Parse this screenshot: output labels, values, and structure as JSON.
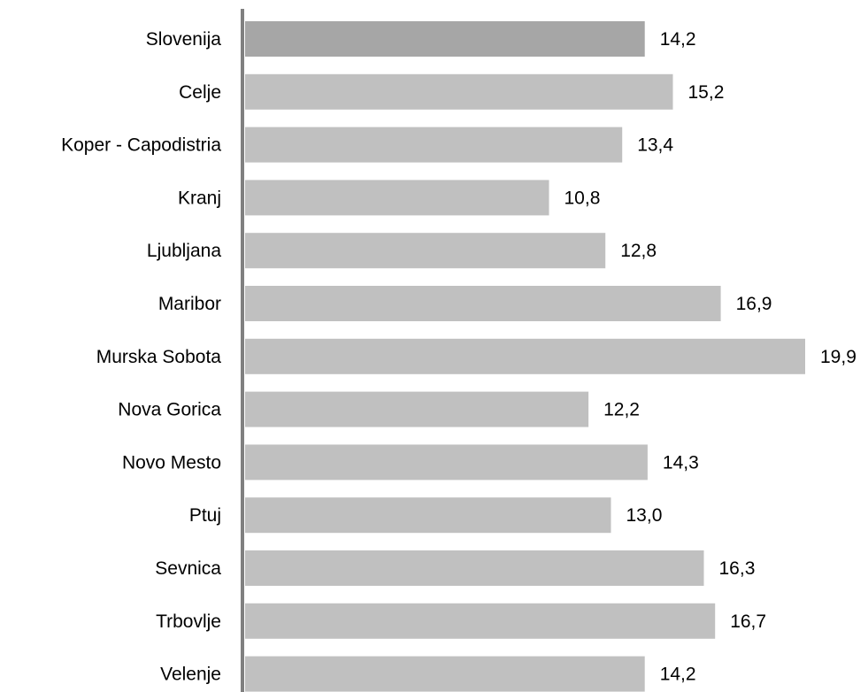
{
  "chart_data": {
    "type": "bar",
    "orientation": "horizontal",
    "categories": [
      "Slovenija",
      "Celje",
      "Koper - Capodistria",
      "Kranj",
      "Ljubljana",
      "Maribor",
      "Murska Sobota",
      "Nova Gorica",
      "Novo Mesto",
      "Ptuj",
      "Sevnica",
      "Trbovlje",
      "Velenje"
    ],
    "values": [
      14.2,
      15.2,
      13.4,
      10.8,
      12.8,
      16.9,
      19.9,
      12.2,
      14.3,
      13.0,
      16.3,
      16.7,
      14.2
    ],
    "value_labels": [
      "14,2",
      "15,2",
      "13,4",
      "10,8",
      "12,8",
      "16,9",
      "19,9",
      "12,2",
      "14,3",
      "13,0",
      "16,3",
      "16,7",
      "14,2"
    ],
    "highlight": "Slovenija",
    "colors": {
      "highlight": "#a6a6a6",
      "bar": "#c0c0c0",
      "axis": "#808080"
    },
    "xlim": [
      0,
      19.9
    ],
    "grid": false,
    "legend": "none"
  }
}
